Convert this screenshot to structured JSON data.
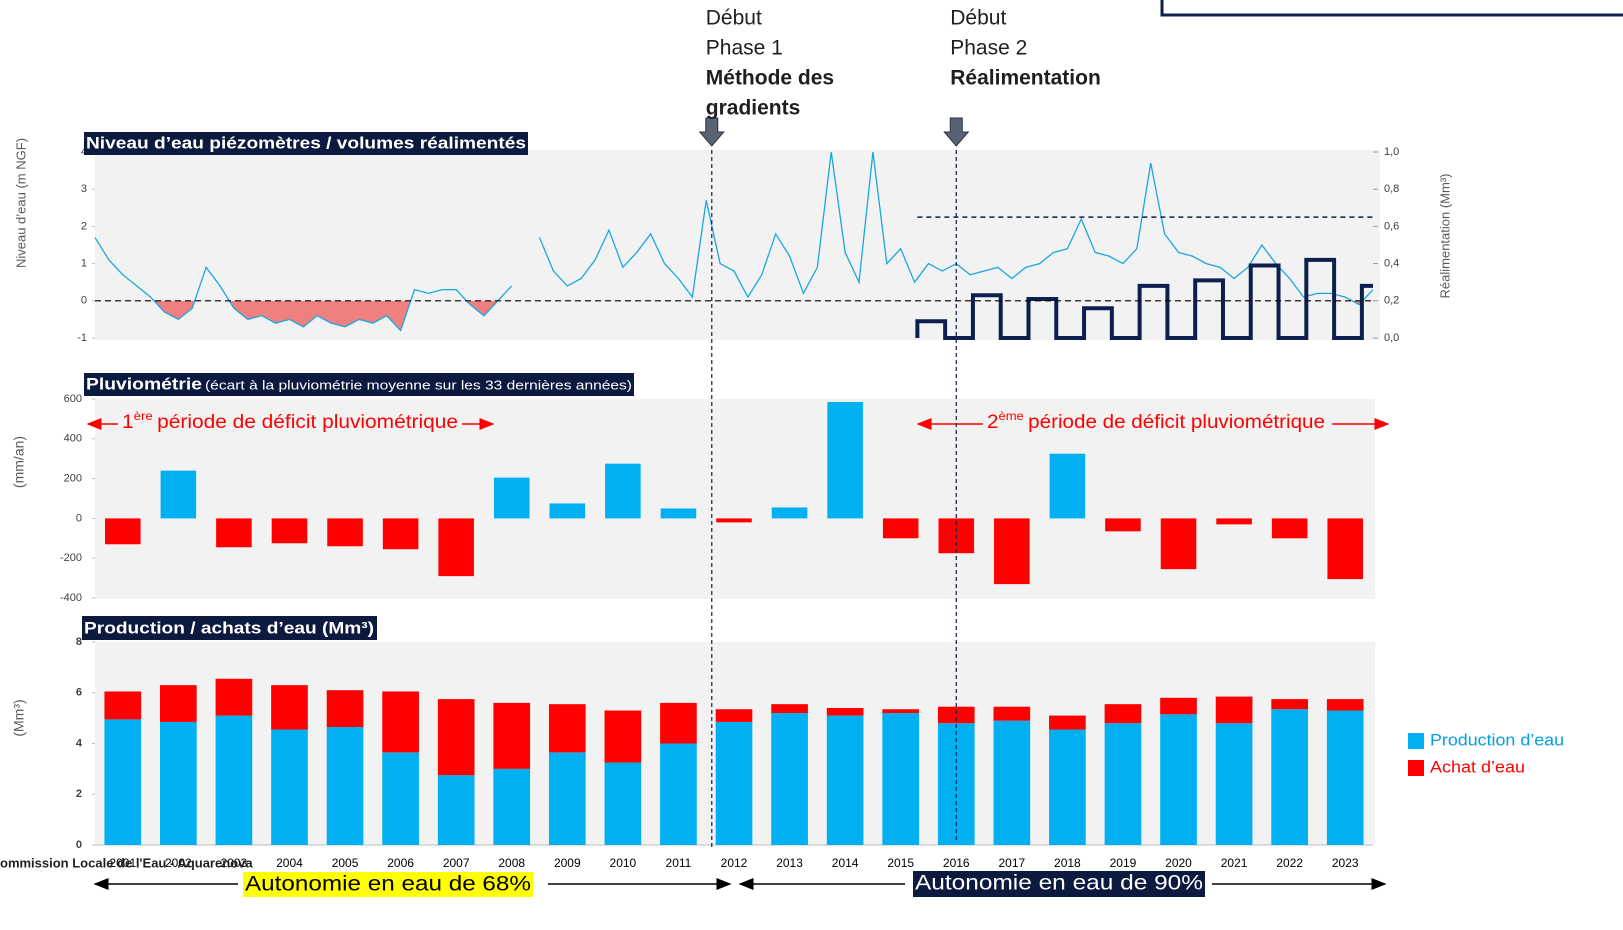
{
  "chart_data": [
    {
      "type": "line",
      "title": "Niveau d’eau piézomètres / volumes réalimentés",
      "ylabel": "Niveau d’eau (m NGF)",
      "y2label": "Réalimentation (Mm³)",
      "xlim": [
        2001,
        2024
      ],
      "ylim": [
        -1,
        4
      ],
      "yticks": [
        -1,
        0,
        1,
        2,
        3,
        4
      ],
      "y2lim": [
        0,
        1
      ],
      "y2ticks": [
        {
          "value": 0,
          "label": "0,0"
        },
        {
          "value": 0.2,
          "label": "0,2"
        },
        {
          "value": 0.4,
          "label": "0,4"
        },
        {
          "value": 0.6,
          "label": "0,6"
        },
        {
          "value": 0.8,
          "label": "0,8"
        },
        {
          "value": 1,
          "label": "1,0"
        }
      ],
      "negative_fill": "#f08080",
      "reference_line_y2": 0.65,
      "reference_line_start": 2015.8,
      "series": [
        {
          "color": "#1aa7e0",
          "x": [
            2001,
            2001.25,
            2001.5,
            2001.75,
            2002,
            2002.25,
            2002.5,
            2002.75,
            2003,
            2003.25,
            2003.5,
            2003.75,
            2004,
            2004.25,
            2004.5,
            2004.75,
            2005,
            2005.25,
            2005.5,
            2005.75,
            2006,
            2006.25,
            2006.5,
            2006.75,
            2007,
            2007.25,
            2007.5,
            2007.75,
            2008,
            2008.25,
            2008.5,
            2008.75,
            2009,
            2009.25,
            2009.5,
            2009.75,
            2010,
            2010.25,
            2010.5,
            2010.75,
            2011,
            2011.25,
            2011.5,
            2011.75,
            2012,
            2012.25,
            2012.5,
            2012.75,
            2013,
            2013.25,
            2013.5,
            2013.75,
            2014,
            2014.25,
            2014.5,
            2014.75,
            2015,
            2015.25,
            2015.5,
            2015.75,
            2016,
            2016.25,
            2016.5,
            2016.75,
            2017,
            2017.25,
            2017.5,
            2017.75,
            2018,
            2018.25,
            2018.5,
            2018.75,
            2019,
            2019.25,
            2019.5,
            2019.75,
            2020,
            2020.25,
            2020.5,
            2020.75,
            2021,
            2021.25,
            2021.5,
            2021.75,
            2022,
            2022.25,
            2022.5,
            2022.75,
            2023,
            2023.25,
            2023.5,
            2023.75,
            2024
          ],
          "values": [
            1.7,
            1.1,
            0.7,
            0.4,
            0.1,
            -0.3,
            -0.5,
            -0.2,
            0.9,
            0.4,
            -0.2,
            -0.5,
            -0.4,
            -0.6,
            -0.5,
            -0.7,
            -0.4,
            -0.6,
            -0.7,
            -0.5,
            -0.6,
            -0.4,
            -0.8,
            0.3,
            0.2,
            0.3,
            0.3,
            -0.1,
            -0.4,
            0.0,
            0.4,
            null,
            1.7,
            0.8,
            0.4,
            0.6,
            1.1,
            1.9,
            0.9,
            1.3,
            1.8,
            1.0,
            0.6,
            0.1,
            2.7,
            1.0,
            0.8,
            0.1,
            0.7,
            1.8,
            1.2,
            0.2,
            0.9,
            4.0,
            1.3,
            0.5,
            4.0,
            1.0,
            1.4,
            0.5,
            1.0,
            0.8,
            1.0,
            0.7,
            0.8,
            0.9,
            0.6,
            0.9,
            1.0,
            1.3,
            1.4,
            2.2,
            1.3,
            1.2,
            1.0,
            1.4,
            3.7,
            1.8,
            1.3,
            1.2,
            1.0,
            0.9,
            0.6,
            0.9,
            1.5,
            1.0,
            0.6,
            0.1,
            0.2,
            0.2,
            0.1,
            -0.1,
            0.3
          ]
        },
        {
          "color": "#0d1f4f",
          "axis": "y2",
          "step": true,
          "x": [
            2015.8,
            2016.3,
            2016.8,
            2017.3,
            2017.8,
            2018.3,
            2018.8,
            2019.3,
            2019.8,
            2020.3,
            2020.8,
            2021.3,
            2021.8,
            2022.3,
            2022.8,
            2023.3,
            2023.8
          ],
          "values": [
            0.09,
            0,
            0.23,
            0,
            0.21,
            0,
            0.16,
            0,
            0.28,
            0,
            0.31,
            0,
            0.39,
            0,
            0.42,
            0,
            0.28
          ]
        }
      ]
    },
    {
      "type": "bar",
      "title": "Pluviométrie",
      "subtitle": "(écart à la pluviométrie moyenne sur les 33 dernières années)",
      "ylabel": "(mm/an)",
      "values": [
        -130,
        240,
        -145,
        -125,
        -140,
        -155,
        -290,
        205,
        75,
        275,
        50,
        -20,
        55,
        585,
        -100,
        -175,
        -330,
        325,
        -65,
        -255,
        -30,
        -100,
        -305
      ],
      "positive_color": "#00b0f0",
      "negative_color": "#ff0000",
      "ylim": [
        -400,
        600
      ],
      "yticks": [
        -400,
        -200,
        0,
        200,
        400,
        600
      ],
      "annotations": [
        {
          "number": "1",
          "suffix": "ère",
          "text": "période de déficit pluviométrique"
        },
        {
          "number": "2",
          "suffix": "ème",
          "text": "période de déficit pluviométrique"
        }
      ]
    },
    {
      "type": "stacked_bar",
      "title": "Production / achats d’eau (Mm³)",
      "ylabel": "(Mm³)",
      "categories": [
        "2001",
        "2002",
        "2003",
        "2004",
        "2005",
        "2006",
        "2007",
        "2008",
        "2009",
        "2010",
        "2011",
        "2012",
        "2013",
        "2014",
        "2015",
        "2016",
        "2017",
        "2018",
        "2019",
        "2020",
        "2021",
        "2022",
        "2023"
      ],
      "series": [
        {
          "name": "Production d’eau",
          "color": "#00b0f0",
          "values": [
            4.95,
            4.85,
            5.1,
            4.55,
            4.65,
            3.65,
            2.75,
            3.0,
            3.65,
            3.25,
            4.0,
            4.85,
            5.2,
            5.1,
            5.2,
            4.8,
            4.9,
            4.55,
            4.8,
            5.15,
            4.8,
            5.35,
            5.3
          ]
        },
        {
          "name": "Achat d’eau",
          "color": "#ff0000",
          "values": [
            1.1,
            1.45,
            1.45,
            1.75,
            1.45,
            2.4,
            3.0,
            2.6,
            1.9,
            2.05,
            1.6,
            0.5,
            0.35,
            0.3,
            0.15,
            0.65,
            0.55,
            0.55,
            0.75,
            0.65,
            1.05,
            0.4,
            0.45
          ]
        }
      ],
      "ylim": [
        0,
        8
      ],
      "yticks": [
        0,
        2,
        4,
        6,
        8
      ],
      "legend": "right"
    }
  ],
  "phases": [
    {
      "lines": [
        "Début",
        "Phase 1"
      ],
      "bold": [
        "Méthode des",
        "gradients"
      ],
      "x": 2012.1
    },
    {
      "lines": [
        "Début",
        "Phase 2"
      ],
      "bold": [
        "Réalimentation"
      ],
      "x": 2016.5
    }
  ],
  "footer": "ommission Locale de l'Eau - Aquarenova",
  "autonomy": [
    "Autonomie en eau de 68%",
    "Autonomie en eau de 90%"
  ]
}
